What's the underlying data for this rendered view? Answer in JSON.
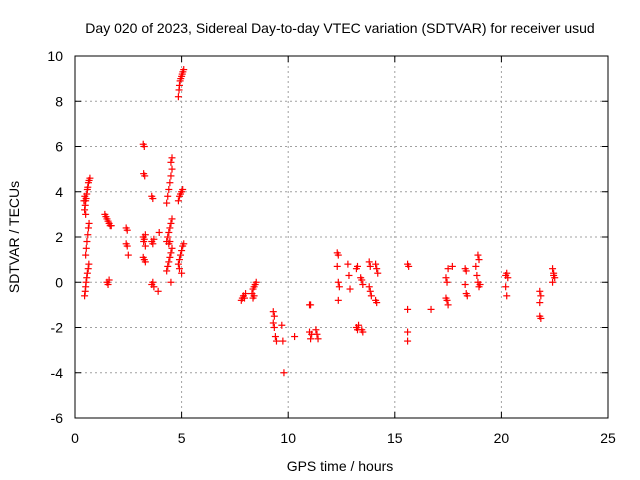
{
  "chart_data": {
    "type": "scatter",
    "title": "Day 020 of 2023, Sidereal Day-to-day VTEC variation (SDTVAR) for receiver usud",
    "xlabel": "GPS time / hours",
    "ylabel": "SDTVAR / TECUs",
    "xlim": [
      0,
      25
    ],
    "ylim": [
      -6,
      10
    ],
    "xticks": [
      0,
      5,
      10,
      15,
      20,
      25
    ],
    "yticks": [
      -6,
      -4,
      -2,
      0,
      2,
      4,
      6,
      8,
      10
    ],
    "grid": true,
    "marker": "+",
    "color": "#ff0000",
    "series": [
      {
        "name": "SDTVAR",
        "points": [
          [
            0.45,
            -0.6
          ],
          [
            0.48,
            -0.4
          ],
          [
            0.5,
            -0.2
          ],
          [
            0.52,
            0.0
          ],
          [
            0.55,
            0.2
          ],
          [
            0.58,
            0.4
          ],
          [
            0.62,
            0.6
          ],
          [
            0.65,
            0.8
          ],
          [
            0.5,
            1.2
          ],
          [
            0.53,
            1.5
          ],
          [
            0.56,
            1.8
          ],
          [
            0.6,
            2.1
          ],
          [
            0.63,
            2.4
          ],
          [
            0.66,
            2.6
          ],
          [
            0.45,
            3.2
          ],
          [
            0.48,
            3.4
          ],
          [
            0.5,
            3.6
          ],
          [
            0.52,
            3.7
          ],
          [
            0.55,
            3.9
          ],
          [
            0.58,
            4.1
          ],
          [
            0.6,
            4.2
          ],
          [
            0.63,
            4.4
          ],
          [
            0.66,
            4.5
          ],
          [
            0.7,
            4.6
          ],
          [
            0.42,
            3.6
          ],
          [
            0.46,
            3.8
          ],
          [
            0.5,
            3.0
          ],
          [
            1.4,
            3.0
          ],
          [
            1.45,
            2.9
          ],
          [
            1.5,
            2.8
          ],
          [
            1.55,
            2.7
          ],
          [
            1.6,
            2.6
          ],
          [
            1.65,
            2.5
          ],
          [
            1.7,
            2.5
          ],
          [
            1.5,
            0.0
          ],
          [
            1.55,
            -0.1
          ],
          [
            1.6,
            0.1
          ],
          [
            2.4,
            2.4
          ],
          [
            2.45,
            2.3
          ],
          [
            2.4,
            1.7
          ],
          [
            2.45,
            1.6
          ],
          [
            2.5,
            1.2
          ],
          [
            3.2,
            6.1
          ],
          [
            3.25,
            6.0
          ],
          [
            3.22,
            4.8
          ],
          [
            3.27,
            4.7
          ],
          [
            3.2,
            2.0
          ],
          [
            3.25,
            1.9
          ],
          [
            3.3,
            2.1
          ],
          [
            3.22,
            1.8
          ],
          [
            3.3,
            1.6
          ],
          [
            3.2,
            1.1
          ],
          [
            3.25,
            1.0
          ],
          [
            3.3,
            0.9
          ],
          [
            3.6,
            3.8
          ],
          [
            3.65,
            3.7
          ],
          [
            3.6,
            1.8
          ],
          [
            3.65,
            1.7
          ],
          [
            3.7,
            1.9
          ],
          [
            3.6,
            -0.1
          ],
          [
            3.65,
            0.0
          ],
          [
            3.7,
            -0.2
          ],
          [
            3.9,
            -0.4
          ],
          [
            3.95,
            2.2
          ],
          [
            4.3,
            0.5
          ],
          [
            4.35,
            0.7
          ],
          [
            4.4,
            0.9
          ],
          [
            4.45,
            1.1
          ],
          [
            4.5,
            1.3
          ],
          [
            4.55,
            1.5
          ],
          [
            4.3,
            1.8
          ],
          [
            4.35,
            2.0
          ],
          [
            4.4,
            2.2
          ],
          [
            4.45,
            2.4
          ],
          [
            4.5,
            2.6
          ],
          [
            4.55,
            2.8
          ],
          [
            4.3,
            3.5
          ],
          [
            4.35,
            3.8
          ],
          [
            4.4,
            4.1
          ],
          [
            4.45,
            4.4
          ],
          [
            4.5,
            4.7
          ],
          [
            4.55,
            5.0
          ],
          [
            4.5,
            5.3
          ],
          [
            4.55,
            5.5
          ],
          [
            4.5,
            0.0
          ],
          [
            4.4,
            1.7
          ],
          [
            4.45,
            1.8
          ],
          [
            4.85,
            8.2
          ],
          [
            4.88,
            8.5
          ],
          [
            4.9,
            8.7
          ],
          [
            4.93,
            8.9
          ],
          [
            4.96,
            9.0
          ],
          [
            5.0,
            9.1
          ],
          [
            5.03,
            9.2
          ],
          [
            5.06,
            9.3
          ],
          [
            5.1,
            9.4
          ],
          [
            4.85,
            3.6
          ],
          [
            4.9,
            3.8
          ],
          [
            4.95,
            3.9
          ],
          [
            5.0,
            4.0
          ],
          [
            5.05,
            4.1
          ],
          [
            4.85,
            0.8
          ],
          [
            4.9,
            1.0
          ],
          [
            4.95,
            1.2
          ],
          [
            5.0,
            1.4
          ],
          [
            5.05,
            1.6
          ],
          [
            5.1,
            1.7
          ],
          [
            4.9,
            0.6
          ],
          [
            5.0,
            0.4
          ],
          [
            7.8,
            -0.8
          ],
          [
            7.85,
            -0.7
          ],
          [
            7.9,
            -0.6
          ],
          [
            7.95,
            -0.7
          ],
          [
            8.0,
            -0.5
          ],
          [
            8.3,
            -0.5
          ],
          [
            8.35,
            -0.3
          ],
          [
            8.4,
            -0.2
          ],
          [
            8.45,
            -0.1
          ],
          [
            8.5,
            0.0
          ],
          [
            8.35,
            -0.7
          ],
          [
            8.4,
            -0.6
          ],
          [
            9.3,
            -1.3
          ],
          [
            9.35,
            -1.5
          ],
          [
            9.3,
            -1.8
          ],
          [
            9.35,
            -2.0
          ],
          [
            9.4,
            -2.4
          ],
          [
            9.45,
            -2.6
          ],
          [
            9.7,
            -1.9
          ],
          [
            9.75,
            -2.6
          ],
          [
            9.8,
            -4.0
          ],
          [
            10.3,
            -2.4
          ],
          [
            11.0,
            -1.0
          ],
          [
            11.05,
            -1.0
          ],
          [
            11.0,
            -2.2
          ],
          [
            11.05,
            -2.5
          ],
          [
            11.1,
            -2.3
          ],
          [
            11.3,
            -2.1
          ],
          [
            11.35,
            -2.3
          ],
          [
            11.4,
            -2.5
          ],
          [
            12.3,
            1.3
          ],
          [
            12.35,
            1.2
          ],
          [
            12.3,
            0.7
          ],
          [
            12.35,
            0.0
          ],
          [
            12.4,
            -0.2
          ],
          [
            12.35,
            -0.8
          ],
          [
            12.8,
            0.8
          ],
          [
            12.85,
            0.3
          ],
          [
            12.9,
            -0.3
          ],
          [
            13.2,
            0.6
          ],
          [
            13.25,
            0.7
          ],
          [
            13.2,
            -2.0
          ],
          [
            13.25,
            -2.1
          ],
          [
            13.3,
            -1.9
          ],
          [
            13.4,
            0.2
          ],
          [
            13.45,
            0.1
          ],
          [
            13.5,
            -0.1
          ],
          [
            13.45,
            -2.1
          ],
          [
            13.5,
            -2.2
          ],
          [
            13.8,
            0.9
          ],
          [
            13.85,
            0.7
          ],
          [
            13.8,
            -0.2
          ],
          [
            13.85,
            -0.4
          ],
          [
            13.9,
            -0.6
          ],
          [
            14.1,
            0.8
          ],
          [
            14.15,
            0.6
          ],
          [
            14.2,
            0.4
          ],
          [
            14.1,
            -0.8
          ],
          [
            14.15,
            -0.9
          ],
          [
            15.6,
            0.8
          ],
          [
            15.65,
            0.7
          ],
          [
            15.6,
            -1.2
          ],
          [
            15.6,
            -2.2
          ],
          [
            15.6,
            -2.6
          ],
          [
            16.7,
            -1.2
          ],
          [
            17.4,
            0.2
          ],
          [
            17.45,
            0.0
          ],
          [
            17.5,
            0.6
          ],
          [
            17.4,
            -0.7
          ],
          [
            17.45,
            -0.8
          ],
          [
            17.5,
            -1.0
          ],
          [
            17.7,
            0.7
          ],
          [
            18.3,
            0.6
          ],
          [
            18.35,
            0.5
          ],
          [
            18.3,
            -0.1
          ],
          [
            18.35,
            -0.5
          ],
          [
            18.4,
            -0.6
          ],
          [
            18.8,
            0.7
          ],
          [
            18.85,
            0.3
          ],
          [
            18.9,
            0.0
          ],
          [
            18.95,
            -0.2
          ],
          [
            18.9,
            1.2
          ],
          [
            18.95,
            1.0
          ],
          [
            19.0,
            -0.1
          ],
          [
            20.2,
            0.3
          ],
          [
            20.25,
            0.4
          ],
          [
            20.3,
            0.2
          ],
          [
            20.2,
            -0.2
          ],
          [
            20.25,
            -0.6
          ],
          [
            21.8,
            -0.4
          ],
          [
            21.85,
            -0.6
          ],
          [
            21.8,
            -0.9
          ],
          [
            21.8,
            -1.5
          ],
          [
            21.85,
            -1.6
          ],
          [
            22.4,
            0.6
          ],
          [
            22.45,
            0.4
          ],
          [
            22.5,
            0.2
          ],
          [
            22.4,
            0.0
          ],
          [
            22.45,
            0.3
          ]
        ]
      }
    ]
  }
}
